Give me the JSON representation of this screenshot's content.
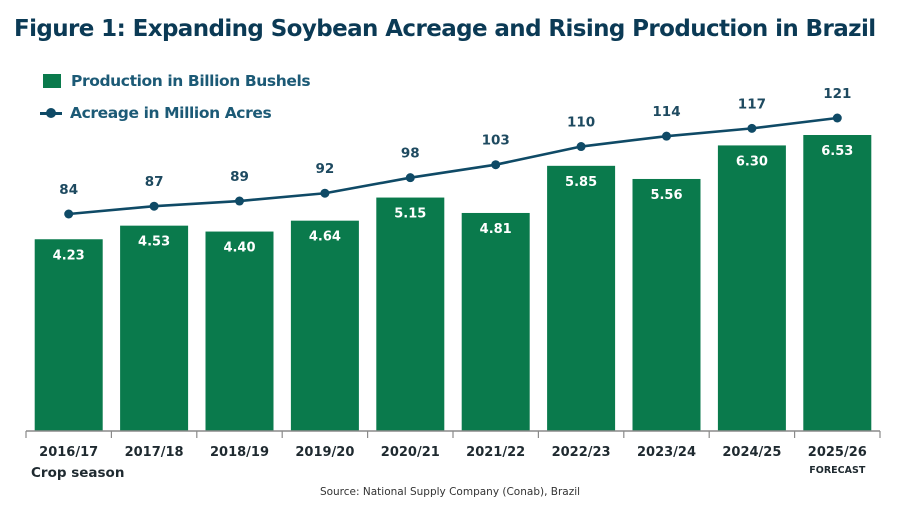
{
  "title": "Figure 1: Expanding Soybean Acreage and Rising Production in Brazil",
  "colors": {
    "bar": "#0a7a4c",
    "line": "#0f4a66",
    "bar_label": "#ffffff",
    "line_label": "#1e4a60",
    "axis": "#8a8a8a",
    "tick_label": "#1f2a30",
    "title": "#0b3a55"
  },
  "legend": {
    "production_label": "Production in Billion Bushels",
    "acreage_label": "Acreage in Million Acres",
    "production_icon": "bar-swatch-icon",
    "acreage_icon": "line-marker-swatch-icon"
  },
  "chart_data": {
    "type": "bar",
    "title": "Figure 1: Expanding Soybean Acreage and Rising Production in Brazil",
    "xlabel": "Crop season",
    "ylabel": "",
    "categories": [
      "2016/17",
      "2017/18",
      "2018/19",
      "2019/20",
      "2020/21",
      "2021/22",
      "2022/23",
      "2023/24",
      "2024/25",
      "2025/26"
    ],
    "category_notes": [
      "",
      "",
      "",
      "",
      "",
      "",
      "",
      "",
      "",
      "FORECAST"
    ],
    "series": [
      {
        "name": "Production in Billion Bushels",
        "type": "bar",
        "values": [
          4.23,
          4.53,
          4.4,
          4.64,
          5.15,
          4.81,
          5.85,
          5.56,
          6.3,
          6.53
        ],
        "labels": [
          "4.23",
          "4.53",
          "4.40",
          "4.64",
          "5.15",
          "4.81",
          "5.85",
          "5.56",
          "6.30",
          "6.53"
        ],
        "ylim": [
          0,
          6.53
        ]
      },
      {
        "name": "Acreage in Million Acres",
        "type": "line",
        "values": [
          84,
          87,
          89,
          92,
          98,
          103,
          110,
          114,
          117,
          121
        ],
        "labels": [
          "84",
          "87",
          "89",
          "92",
          "98",
          "103",
          "110",
          "114",
          "117",
          "121"
        ],
        "ylim": [
          0,
          121
        ]
      }
    ],
    "grid": false,
    "legend_position": "top-left"
  },
  "source": "Source: National Supply Company (Conab), Brazil"
}
